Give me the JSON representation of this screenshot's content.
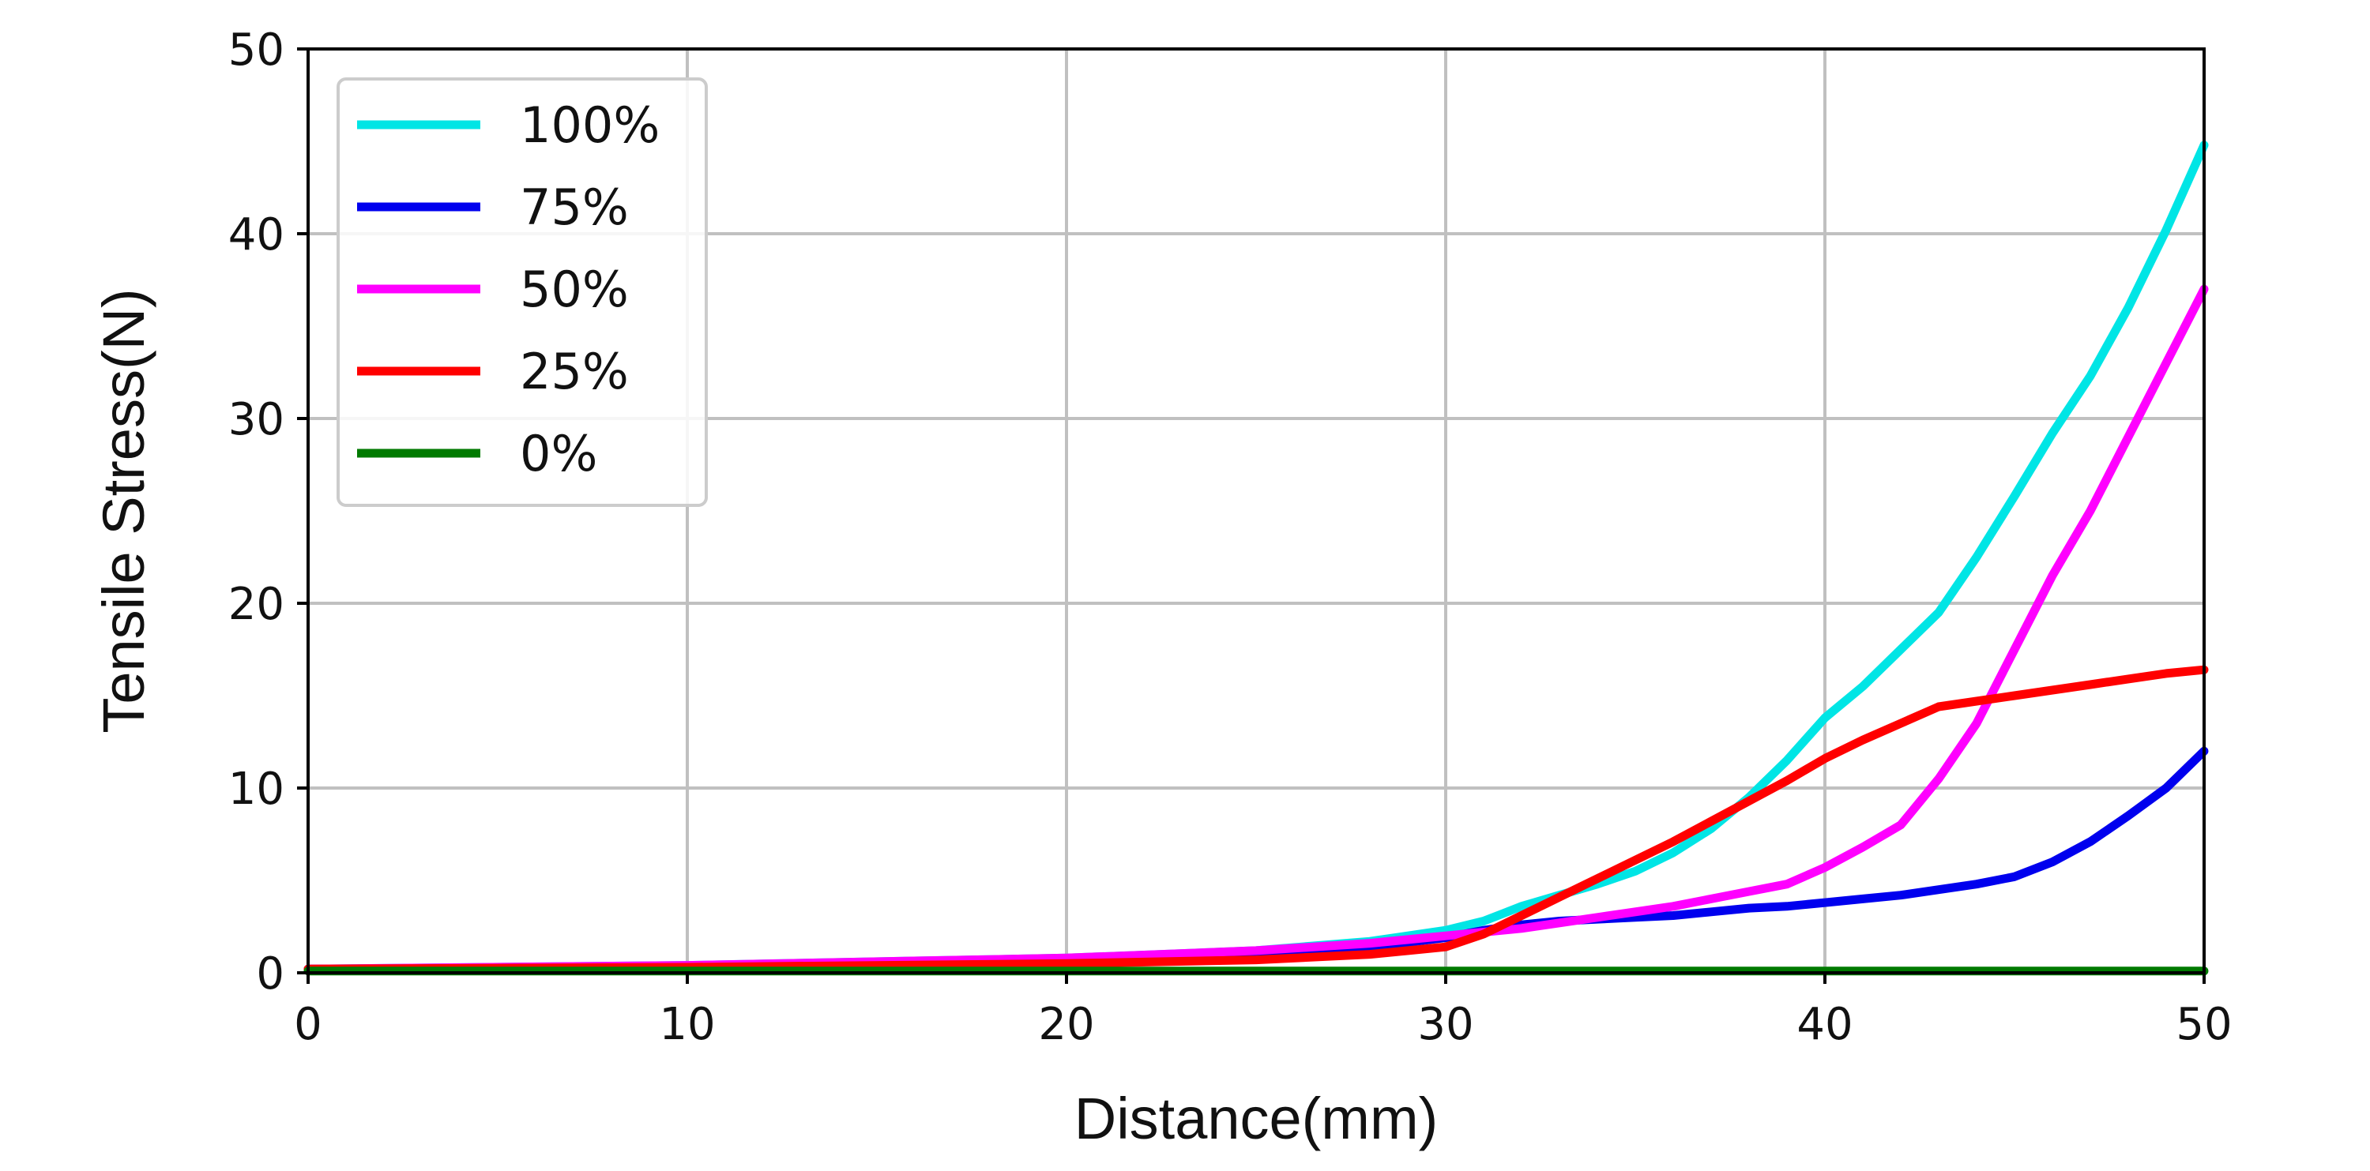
{
  "chart_data": {
    "type": "line",
    "title": "",
    "xlabel": "Distance(mm)",
    "ylabel": "Tensile Stress(N)",
    "xlim": [
      0,
      50
    ],
    "ylim": [
      0,
      50
    ],
    "xticks": [
      "0",
      "10",
      "20",
      "30",
      "40",
      "50"
    ],
    "yticks": [
      "0",
      "10",
      "20",
      "30",
      "40",
      "50"
    ],
    "grid": true,
    "legend_position": "top-left",
    "series": [
      {
        "name": "100%",
        "color": "#00e5e5",
        "x": [
          0,
          10,
          20,
          25,
          28,
          30,
          31,
          32,
          33,
          34,
          35,
          36,
          37,
          38,
          39,
          40,
          41,
          42,
          43,
          44,
          45,
          46,
          47,
          48,
          49,
          50
        ],
        "y": [
          0.2,
          0.4,
          0.8,
          1.2,
          1.7,
          2.3,
          2.8,
          3.6,
          4.2,
          4.8,
          5.5,
          6.5,
          7.8,
          9.5,
          11.5,
          13.8,
          15.5,
          17.5,
          19.5,
          22.5,
          25.8,
          29.2,
          32.3,
          36.0,
          40.2,
          44.8
        ]
      },
      {
        "name": "75%",
        "color": "#0000ee",
        "x": [
          0,
          10,
          20,
          25,
          28,
          30,
          31,
          32,
          33,
          34,
          35,
          36,
          37,
          38,
          39,
          40,
          41,
          42,
          43,
          44,
          45,
          46,
          47,
          48,
          49,
          50
        ],
        "y": [
          0.2,
          0.3,
          0.6,
          1.0,
          1.4,
          1.9,
          2.3,
          2.6,
          2.8,
          2.9,
          3.0,
          3.1,
          3.3,
          3.5,
          3.6,
          3.8,
          4.0,
          4.2,
          4.5,
          4.8,
          5.2,
          6.0,
          7.1,
          8.5,
          10.0,
          12.0
        ]
      },
      {
        "name": "50%",
        "color": "#ff00ff",
        "x": [
          0,
          10,
          20,
          25,
          28,
          30,
          31,
          32,
          33,
          34,
          35,
          36,
          37,
          38,
          39,
          40,
          41,
          42,
          43,
          44,
          45,
          46,
          47,
          48,
          49,
          50
        ],
        "y": [
          0.2,
          0.4,
          0.8,
          1.2,
          1.6,
          2.0,
          2.2,
          2.4,
          2.7,
          3.0,
          3.3,
          3.6,
          4.0,
          4.4,
          4.8,
          5.7,
          6.8,
          8.0,
          10.5,
          13.5,
          17.5,
          21.5,
          25.0,
          29.0,
          33.0,
          37.0
        ]
      },
      {
        "name": "25%",
        "color": "#ff0000",
        "x": [
          0,
          10,
          20,
          25,
          28,
          30,
          31,
          32,
          33,
          34,
          35,
          36,
          37,
          38,
          39,
          40,
          41,
          42,
          43,
          44,
          45,
          46,
          47,
          48,
          49,
          50
        ],
        "y": [
          0.2,
          0.3,
          0.5,
          0.7,
          1.0,
          1.4,
          2.1,
          3.1,
          4.1,
          5.1,
          6.1,
          7.1,
          8.2,
          9.3,
          10.4,
          11.6,
          12.6,
          13.5,
          14.4,
          14.7,
          15.0,
          15.3,
          15.6,
          15.9,
          16.2,
          16.4
        ]
      },
      {
        "name": "0%",
        "color": "#007a00",
        "x": [
          0,
          10,
          20,
          30,
          40,
          50
        ],
        "y": [
          0.1,
          0.1,
          0.1,
          0.1,
          0.1,
          0.1
        ]
      }
    ]
  }
}
